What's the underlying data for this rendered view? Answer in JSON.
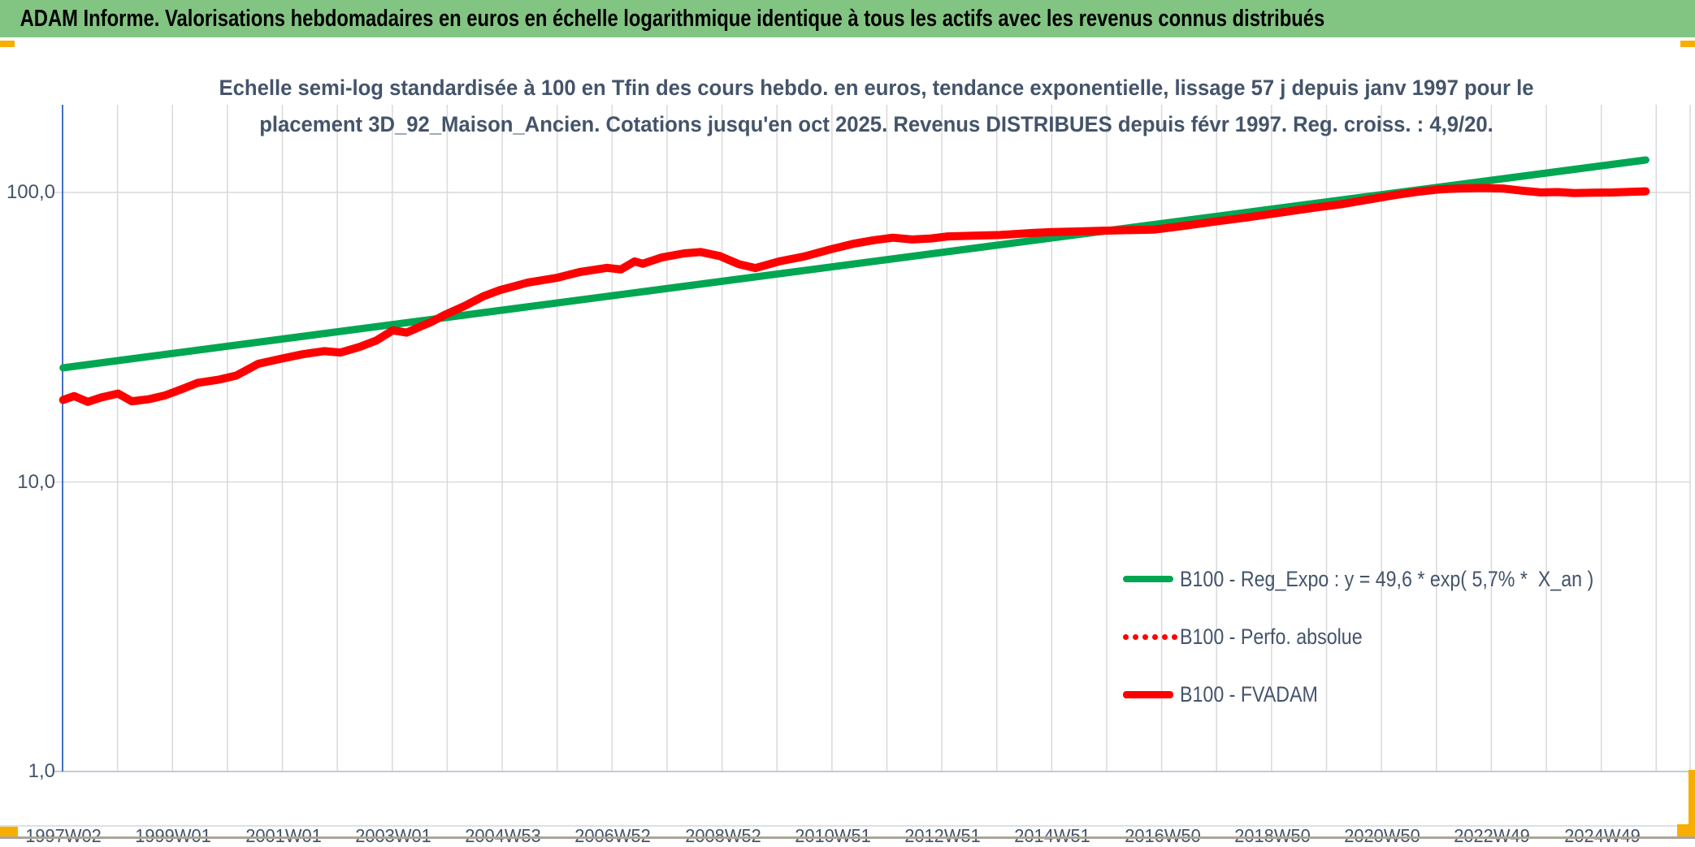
{
  "header": {
    "title": "ADAM Informe. Valorisations hebdomadaires en euros en échelle logarithmique identique à tous les actifs avec les revenus connus distribués"
  },
  "chart": {
    "title_line1": "Echelle semi-log standardisée à 100 en Tfin des cours hebdo. en euros, tendance exponentielle, lissage 57 j depuis janv 1997 pour le",
    "title_line2": "placement 3D_92_Maison_Ancien. Cotations jusqu'en oct 2025. Revenus DISTRIBUES depuis févr 1997. Reg. croiss. : 4,9/20."
  },
  "colors": {
    "header_bg": "#82c482",
    "accent_orange": "#f8ae00",
    "text_blue_gray": "#44546a",
    "green_series": "#00a651",
    "red_series": "#fe0000",
    "gridline": "#d9d9d9",
    "y_axis_line": "#4472c4",
    "x_axis_line": "#c3cad6"
  },
  "chart_data": {
    "type": "line",
    "title": "Echelle semi-log standardisée à 100 en Tfin des cours hebdo. en euros, tendance exponentielle, lissage 57 j depuis janv 1997 pour le placement 3D_92_Maison_Ancien. Cotations jusqu'en oct 2025. Revenus DISTRIBUES depuis févr 1997. Reg. croiss. : 4,9/20.",
    "x_axis": {
      "labels": [
        "1997W02",
        "1999W01",
        "2001W01",
        "2003W01",
        "2004W53",
        "2006W52",
        "2008W52",
        "2010W51",
        "2012W51",
        "2014W51",
        "2016W50",
        "2018W50",
        "2020W50",
        "2022W49",
        "2024W49"
      ],
      "label_interval_years": 2,
      "start_year": 1997.05,
      "end_year": 2025.85,
      "grid": "yearly"
    },
    "y_axis": {
      "scale": "log",
      "ticks": [
        {
          "label": "100,0",
          "value": 100
        },
        {
          "label": "10,0",
          "value": 10
        },
        {
          "label": "1,0",
          "value": 1
        }
      ],
      "ylim": [
        1,
        200
      ],
      "grid": "decades"
    },
    "legend_position": "inside-bottom-right",
    "series": [
      {
        "name": "B100 - Reg_Expo : y = 49,6 * exp( 5,7% *  X_an )",
        "color": "#00a651",
        "style": "solid",
        "stroke_width": 9,
        "points": [
          [
            1997.05,
            24.8
          ],
          [
            2025.85,
            129.5
          ]
        ]
      },
      {
        "name": "B100 - Perfo. absolue",
        "color": "#fe0000",
        "style": "dotted",
        "stroke_width": 4,
        "same_as": "B100 - FVADAM"
      },
      {
        "name": "B100 - FVADAM",
        "color": "#fe0000",
        "style": "solid",
        "stroke_width": 10,
        "points": [
          [
            1997.05,
            19.2
          ],
          [
            1997.25,
            19.8
          ],
          [
            1997.5,
            18.9
          ],
          [
            1997.75,
            19.6
          ],
          [
            1998.05,
            20.2
          ],
          [
            1998.3,
            19.0
          ],
          [
            1998.6,
            19.3
          ],
          [
            1998.9,
            19.9
          ],
          [
            1999.2,
            20.9
          ],
          [
            1999.5,
            22.0
          ],
          [
            1999.9,
            22.6
          ],
          [
            2000.2,
            23.3
          ],
          [
            2000.6,
            25.6
          ],
          [
            2001.0,
            26.6
          ],
          [
            2001.4,
            27.6
          ],
          [
            2001.8,
            28.3
          ],
          [
            2002.1,
            28.0
          ],
          [
            2002.45,
            29.3
          ],
          [
            2002.75,
            30.8
          ],
          [
            2003.05,
            33.4
          ],
          [
            2003.3,
            32.8
          ],
          [
            2003.55,
            34.4
          ],
          [
            2003.75,
            35.7
          ],
          [
            2004.0,
            37.8
          ],
          [
            2004.35,
            40.5
          ],
          [
            2004.7,
            43.8
          ],
          [
            2005.0,
            46.0
          ],
          [
            2005.5,
            48.8
          ],
          [
            2006.05,
            50.8
          ],
          [
            2006.45,
            53.1
          ],
          [
            2006.95,
            54.9
          ],
          [
            2007.2,
            54.2
          ],
          [
            2007.45,
            57.8
          ],
          [
            2007.6,
            56.7
          ],
          [
            2007.95,
            59.7
          ],
          [
            2008.35,
            61.6
          ],
          [
            2008.65,
            62.3
          ],
          [
            2009.0,
            60.3
          ],
          [
            2009.35,
            56.5
          ],
          [
            2009.65,
            54.8
          ],
          [
            2010.1,
            57.9
          ],
          [
            2010.55,
            60.2
          ],
          [
            2011.0,
            63.5
          ],
          [
            2011.45,
            66.6
          ],
          [
            2011.8,
            68.4
          ],
          [
            2012.15,
            69.8
          ],
          [
            2012.5,
            68.8
          ],
          [
            2012.85,
            69.4
          ],
          [
            2013.15,
            70.5
          ],
          [
            2013.6,
            70.9
          ],
          [
            2014.1,
            71.3
          ],
          [
            2014.6,
            72.3
          ],
          [
            2015.05,
            73.0
          ],
          [
            2015.45,
            73.3
          ],
          [
            2015.9,
            73.7
          ],
          [
            2016.4,
            74.1
          ],
          [
            2016.9,
            74.4
          ],
          [
            2017.4,
            76.5
          ],
          [
            2018.0,
            79.3
          ],
          [
            2018.6,
            82.0
          ],
          [
            2019.2,
            85.2
          ],
          [
            2019.8,
            88.5
          ],
          [
            2020.3,
            91.0
          ],
          [
            2020.8,
            94.5
          ],
          [
            2021.3,
            98.0
          ],
          [
            2021.7,
            100.5
          ],
          [
            2022.1,
            102.5
          ],
          [
            2022.5,
            103.3
          ],
          [
            2022.9,
            103.6
          ],
          [
            2023.25,
            103.2
          ],
          [
            2023.6,
            101.4
          ],
          [
            2023.95,
            100.0
          ],
          [
            2024.25,
            100.3
          ],
          [
            2024.55,
            99.5
          ],
          [
            2024.9,
            99.8
          ],
          [
            2025.25,
            100.0
          ],
          [
            2025.55,
            100.5
          ],
          [
            2025.85,
            100.9
          ]
        ]
      }
    ]
  }
}
